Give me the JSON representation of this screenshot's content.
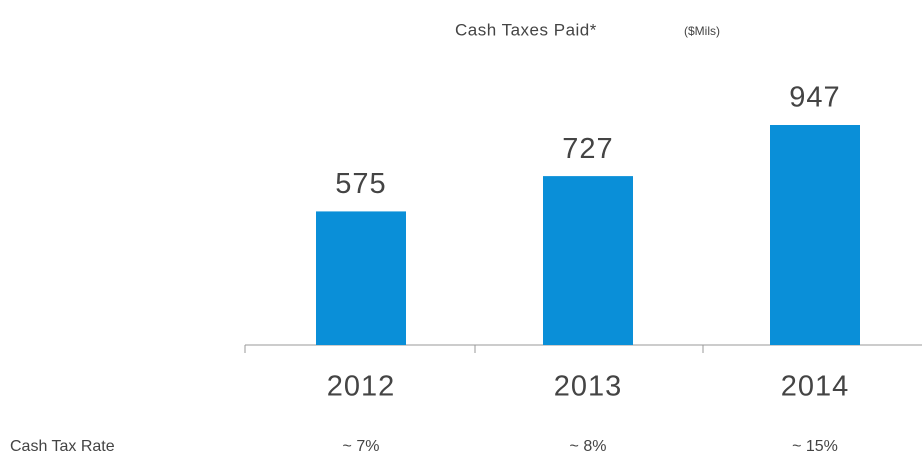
{
  "chart_data": {
    "type": "bar",
    "title": "Cash Taxes Paid*",
    "subtitle": "($Mils)",
    "categories": [
      "2012",
      "2013",
      "2014"
    ],
    "values": [
      575,
      727,
      947
    ],
    "color": "#0a8fd8",
    "row_label": "Cash Tax Rate",
    "row_values": [
      "~ 7%",
      "~ 8%",
      "~ 15%"
    ]
  }
}
